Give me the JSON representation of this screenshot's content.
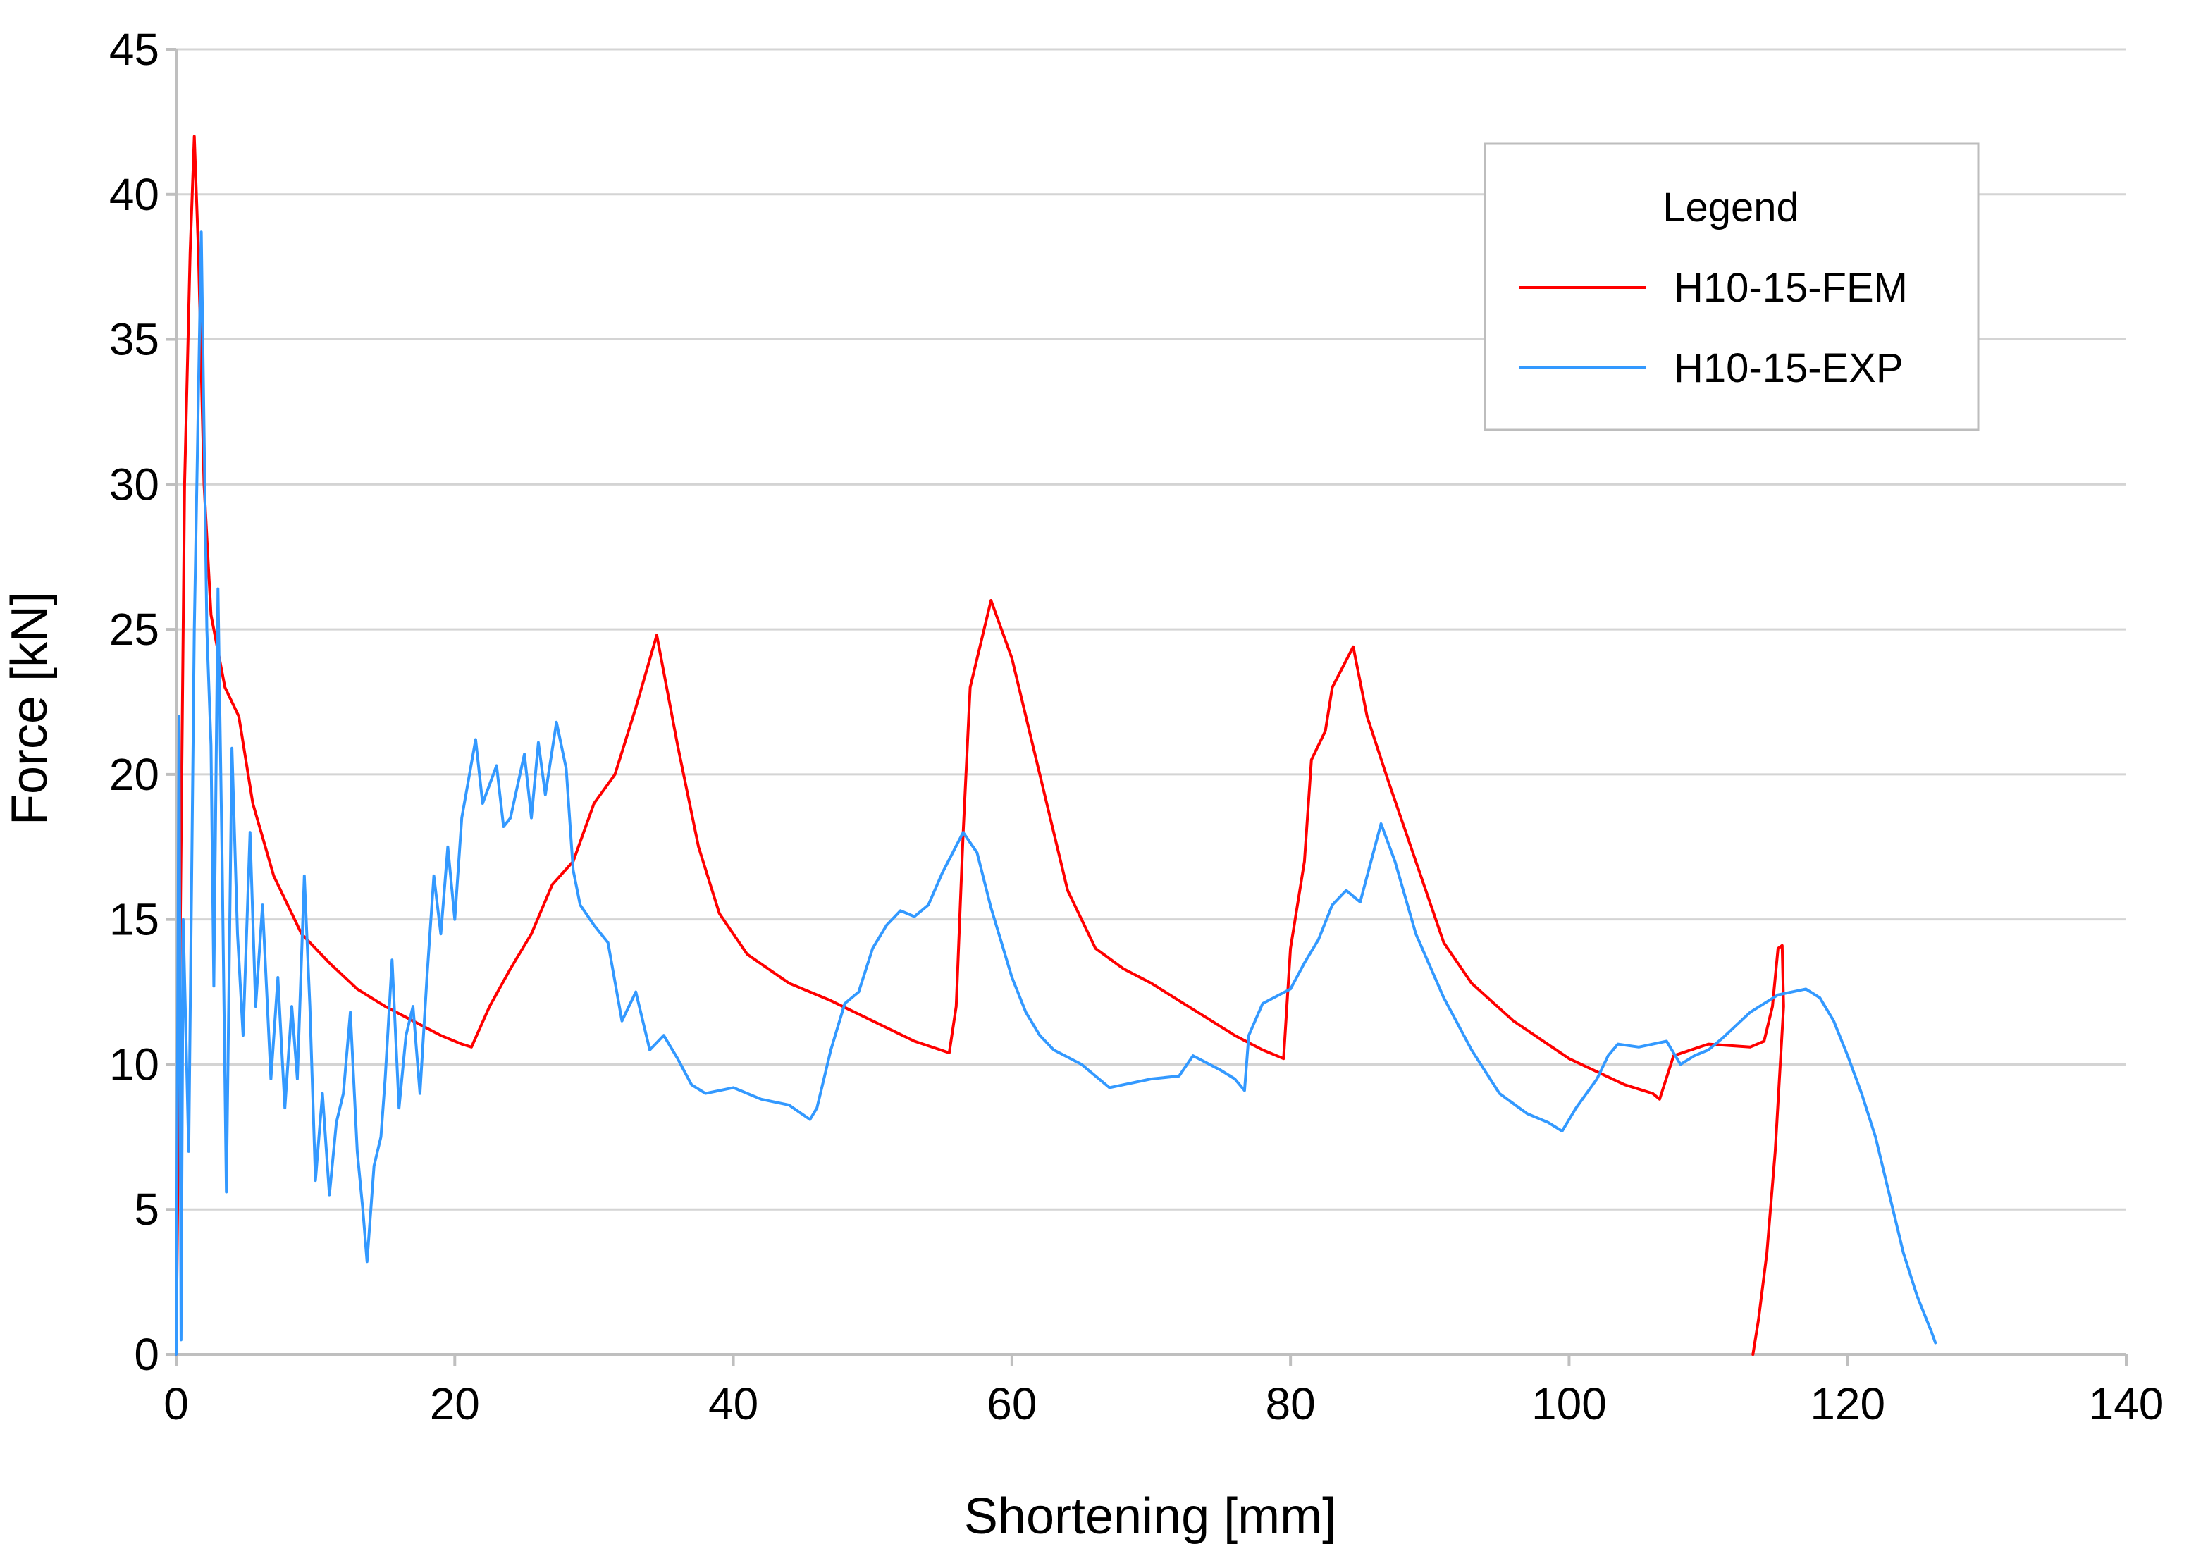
{
  "chart_data": {
    "type": "line",
    "title": "",
    "xlabel": "Shortening [mm]",
    "ylabel": "Force [kN]",
    "xlim": [
      0,
      140
    ],
    "ylim": [
      0,
      45
    ],
    "x_ticks": [
      0,
      20,
      40,
      60,
      80,
      100,
      120,
      140
    ],
    "y_ticks": [
      0,
      5,
      10,
      15,
      20,
      25,
      30,
      35,
      40,
      45
    ],
    "grid": "horizontal",
    "legend": {
      "title": "Legend",
      "placement": "top-right"
    },
    "series": [
      {
        "name": "H10-15-FEM",
        "color": "#ff0000",
        "points": [
          [
            0,
            0
          ],
          [
            0.3,
            15
          ],
          [
            0.6,
            30
          ],
          [
            1.0,
            38
          ],
          [
            1.3,
            42
          ],
          [
            1.6,
            38
          ],
          [
            2.0,
            30
          ],
          [
            2.5,
            25.5
          ],
          [
            3.5,
            23
          ],
          [
            4.5,
            22
          ],
          [
            5.5,
            19
          ],
          [
            7,
            16.5
          ],
          [
            9,
            14.5
          ],
          [
            11,
            13.5
          ],
          [
            13,
            12.6
          ],
          [
            15,
            12
          ],
          [
            17,
            11.5
          ],
          [
            19,
            11
          ],
          [
            20.5,
            10.7
          ],
          [
            21.2,
            10.6
          ],
          [
            22.5,
            12
          ],
          [
            24,
            13.3
          ],
          [
            25.5,
            14.5
          ],
          [
            27,
            16.2
          ],
          [
            28.5,
            17
          ],
          [
            30,
            19
          ],
          [
            31.5,
            20
          ],
          [
            33,
            22.3
          ],
          [
            34.5,
            24.8
          ],
          [
            36,
            21
          ],
          [
            37.5,
            17.5
          ],
          [
            39,
            15.2
          ],
          [
            41,
            13.8
          ],
          [
            44,
            12.8
          ],
          [
            47,
            12.2
          ],
          [
            50,
            11.5
          ],
          [
            53,
            10.8
          ],
          [
            55.5,
            10.4
          ],
          [
            56,
            12
          ],
          [
            56.5,
            18
          ],
          [
            57,
            23
          ],
          [
            58.5,
            26
          ],
          [
            60,
            24
          ],
          [
            62,
            20
          ],
          [
            64,
            16
          ],
          [
            66,
            14
          ],
          [
            68,
            13.3
          ],
          [
            70,
            12.8
          ],
          [
            72,
            12.2
          ],
          [
            74,
            11.6
          ],
          [
            76,
            11
          ],
          [
            78,
            10.5
          ],
          [
            79.5,
            10.2
          ],
          [
            80,
            14
          ],
          [
            81,
            17
          ],
          [
            81.5,
            20.5
          ],
          [
            82.5,
            21.5
          ],
          [
            83,
            23
          ],
          [
            84.5,
            24.4
          ],
          [
            85.5,
            22
          ],
          [
            87,
            19.8
          ],
          [
            89,
            17
          ],
          [
            91,
            14.2
          ],
          [
            93,
            12.8
          ],
          [
            96,
            11.5
          ],
          [
            100,
            10.2
          ],
          [
            104,
            9.3
          ],
          [
            106,
            9.0
          ],
          [
            106.5,
            8.8
          ],
          [
            107.5,
            10.3
          ],
          [
            110,
            10.7
          ],
          [
            113,
            10.6
          ],
          [
            114,
            10.8
          ],
          [
            114.6,
            12
          ],
          [
            115,
            14
          ],
          [
            115.3,
            14.1
          ],
          [
            115.4,
            12
          ],
          [
            114.8,
            7
          ],
          [
            114.2,
            3.5
          ],
          [
            113.6,
            1.2
          ],
          [
            113.2,
            0
          ]
        ]
      },
      {
        "name": "H10-15-EXP",
        "color": "#3399ff",
        "points": [
          [
            0,
            0
          ],
          [
            0.2,
            22
          ],
          [
            0.35,
            0.5
          ],
          [
            0.5,
            15
          ],
          [
            0.9,
            7
          ],
          [
            1.3,
            25
          ],
          [
            1.8,
            38.7
          ],
          [
            2.2,
            25
          ],
          [
            2.5,
            21
          ],
          [
            2.7,
            12.7
          ],
          [
            3.0,
            26.4
          ],
          [
            3.3,
            17
          ],
          [
            3.6,
            5.6
          ],
          [
            4.0,
            20.9
          ],
          [
            4.4,
            14.5
          ],
          [
            4.8,
            11
          ],
          [
            5.3,
            18
          ],
          [
            5.7,
            12
          ],
          [
            6.2,
            15.5
          ],
          [
            6.8,
            9.5
          ],
          [
            7.3,
            13
          ],
          [
            7.8,
            8.5
          ],
          [
            8.3,
            12
          ],
          [
            8.7,
            9.5
          ],
          [
            9.2,
            16.5
          ],
          [
            9.6,
            12
          ],
          [
            10.0,
            6
          ],
          [
            10.5,
            9
          ],
          [
            11.0,
            5.5
          ],
          [
            11.5,
            8
          ],
          [
            12.0,
            9
          ],
          [
            12.5,
            11.8
          ],
          [
            13.0,
            7
          ],
          [
            13.4,
            5
          ],
          [
            13.7,
            3.2
          ],
          [
            14.2,
            6.5
          ],
          [
            14.7,
            7.5
          ],
          [
            15.0,
            9.5
          ],
          [
            15.5,
            13.6
          ],
          [
            16.0,
            8.5
          ],
          [
            16.5,
            11
          ],
          [
            17.0,
            12
          ],
          [
            17.5,
            9
          ],
          [
            18.0,
            13
          ],
          [
            18.5,
            16.5
          ],
          [
            19.0,
            14.5
          ],
          [
            19.5,
            17.5
          ],
          [
            20.0,
            15
          ],
          [
            20.5,
            18.5
          ],
          [
            21.5,
            21.2
          ],
          [
            22.0,
            19
          ],
          [
            23.0,
            20.3
          ],
          [
            23.5,
            18.2
          ],
          [
            24.0,
            18.5
          ],
          [
            25.0,
            20.7
          ],
          [
            25.5,
            18.5
          ],
          [
            26.0,
            21.1
          ],
          [
            26.5,
            19.3
          ],
          [
            27.3,
            21.8
          ],
          [
            28.0,
            20.2
          ],
          [
            28.5,
            16.7
          ],
          [
            29.0,
            15.5
          ],
          [
            30.0,
            14.8
          ],
          [
            31.0,
            14.2
          ],
          [
            32.0,
            11.5
          ],
          [
            33.0,
            12.5
          ],
          [
            34.0,
            10.5
          ],
          [
            35.0,
            11.0
          ],
          [
            36.0,
            10.2
          ],
          [
            37.0,
            9.3
          ],
          [
            38.0,
            9.0
          ],
          [
            40.0,
            9.2
          ],
          [
            42.0,
            8.8
          ],
          [
            44.0,
            8.6
          ],
          [
            45.5,
            8.1
          ],
          [
            46.0,
            8.5
          ],
          [
            47.0,
            10.5
          ],
          [
            48.0,
            12.1
          ],
          [
            49.0,
            12.5
          ],
          [
            50.0,
            14.0
          ],
          [
            51.0,
            14.8
          ],
          [
            52.0,
            15.3
          ],
          [
            53.0,
            15.1
          ],
          [
            54.0,
            15.5
          ],
          [
            55.0,
            16.6
          ],
          [
            56.5,
            18.0
          ],
          [
            57.5,
            17.3
          ],
          [
            58.5,
            15.4
          ],
          [
            60.0,
            13.0
          ],
          [
            61.0,
            11.8
          ],
          [
            62.0,
            11.0
          ],
          [
            63.0,
            10.5
          ],
          [
            65.0,
            10.0
          ],
          [
            67.0,
            9.2
          ],
          [
            70.0,
            9.5
          ],
          [
            72.0,
            9.6
          ],
          [
            73.0,
            10.3
          ],
          [
            75.0,
            9.8
          ],
          [
            76.0,
            9.5
          ],
          [
            76.7,
            9.1
          ],
          [
            77.0,
            11.0
          ],
          [
            78.0,
            12.1
          ],
          [
            80.0,
            12.6
          ],
          [
            81.0,
            13.5
          ],
          [
            82.0,
            14.3
          ],
          [
            83.0,
            15.5
          ],
          [
            84.0,
            16.0
          ],
          [
            85.0,
            15.6
          ],
          [
            86.5,
            18.3
          ],
          [
            87.5,
            17.0
          ],
          [
            89.0,
            14.5
          ],
          [
            91.0,
            12.3
          ],
          [
            93.0,
            10.5
          ],
          [
            95.0,
            9.0
          ],
          [
            97.0,
            8.3
          ],
          [
            98.5,
            8.0
          ],
          [
            99.5,
            7.7
          ],
          [
            100.5,
            8.5
          ],
          [
            102.0,
            9.5
          ],
          [
            102.8,
            10.3
          ],
          [
            103.5,
            10.7
          ],
          [
            105.0,
            10.6
          ],
          [
            107.0,
            10.8
          ],
          [
            108.0,
            10.0
          ],
          [
            109.0,
            10.3
          ],
          [
            110.0,
            10.5
          ],
          [
            111.0,
            10.9
          ],
          [
            113.0,
            11.8
          ],
          [
            115.0,
            12.4
          ],
          [
            117.0,
            12.6
          ],
          [
            118.0,
            12.3
          ],
          [
            119.0,
            11.5
          ],
          [
            120.0,
            10.3
          ],
          [
            121.0,
            9.0
          ],
          [
            122.0,
            7.5
          ],
          [
            123.0,
            5.5
          ],
          [
            124.0,
            3.5
          ],
          [
            125.0,
            2.0
          ],
          [
            126.0,
            0.8
          ],
          [
            126.3,
            0.4
          ]
        ]
      }
    ]
  }
}
